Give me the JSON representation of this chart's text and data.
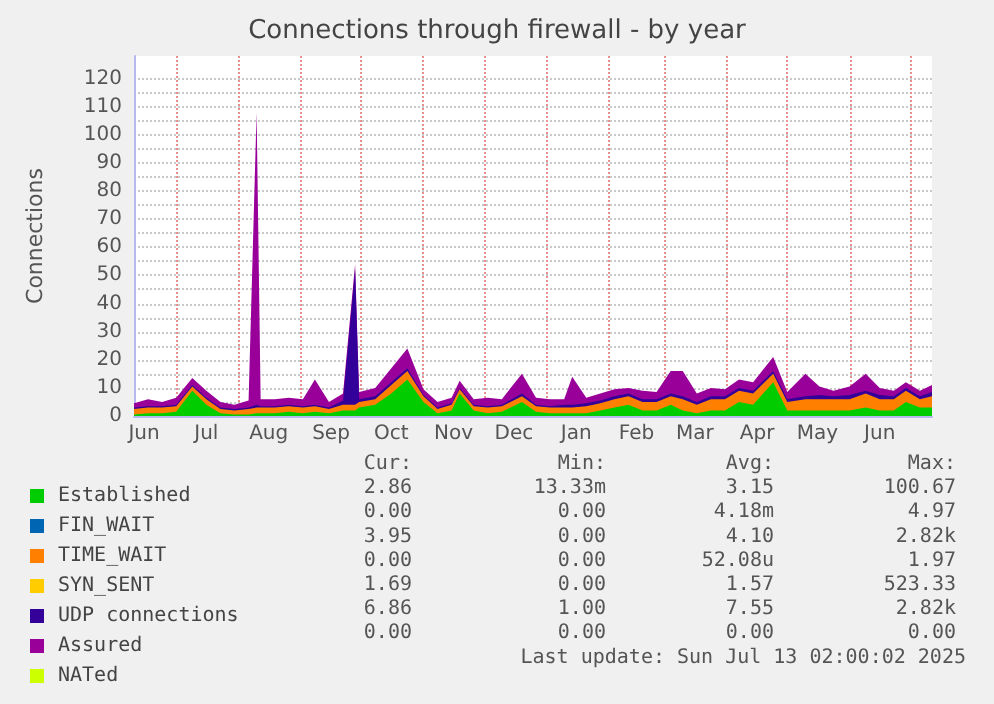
{
  "chart_data": {
    "type": "area",
    "stacked": true,
    "title": "Connections through firewall - by year",
    "ylabel": "Connections",
    "x": [
      "2024-06-10",
      "2024-06-17",
      "2024-06-24",
      "2024-07-01",
      "2024-07-09",
      "2024-07-16",
      "2024-07-23",
      "2024-07-30",
      "2024-08-06",
      "2024-08-10",
      "2024-08-12",
      "2024-08-19",
      "2024-08-26",
      "2024-09-02",
      "2024-09-08",
      "2024-09-15",
      "2024-09-22",
      "2024-09-28",
      "2024-09-30",
      "2024-10-08",
      "2024-10-16",
      "2024-10-24",
      "2024-11-01",
      "2024-11-08",
      "2024-11-15",
      "2024-11-19",
      "2024-11-26",
      "2024-12-03",
      "2024-12-10",
      "2024-12-20",
      "2024-12-27",
      "2025-01-03",
      "2025-01-10",
      "2025-01-14",
      "2025-01-21",
      "2025-01-28",
      "2025-02-04",
      "2025-02-11",
      "2025-02-18",
      "2025-02-25",
      "2025-03-04",
      "2025-03-10",
      "2025-03-17",
      "2025-03-24",
      "2025-03-31",
      "2025-04-07",
      "2025-04-14",
      "2025-04-24",
      "2025-05-01",
      "2025-05-10",
      "2025-05-17",
      "2025-05-24",
      "2025-06-01",
      "2025-06-09",
      "2025-06-16",
      "2025-06-23",
      "2025-06-29",
      "2025-07-06",
      "2025-07-12"
    ],
    "series": [
      {
        "name": "Established",
        "color": "#00cc00",
        "values": [
          0.5,
          1,
          1,
          1.5,
          9,
          4,
          1,
          0.5,
          0.5,
          1,
          1,
          1,
          1.5,
          1,
          1.5,
          1,
          2,
          2,
          3,
          4,
          8,
          13,
          5,
          1,
          2,
          8,
          2,
          1,
          1.5,
          5,
          1.5,
          1,
          1,
          1,
          1,
          2,
          3,
          4,
          2,
          2,
          4,
          2,
          1,
          2,
          2,
          5,
          4,
          12,
          2,
          2,
          2,
          2,
          2,
          3,
          2,
          2,
          5,
          3,
          3
        ]
      },
      {
        "name": "FIN_WAIT",
        "color": "#0066b3",
        "values": [
          null,
          null,
          null,
          null,
          null,
          null,
          null,
          null,
          null,
          null,
          null,
          null,
          null,
          null,
          null,
          null,
          null,
          null,
          null,
          null,
          null,
          null,
          null,
          null,
          null,
          null,
          null,
          null,
          null,
          null,
          null,
          null,
          null,
          null,
          null,
          null,
          null,
          null,
          null,
          null,
          null,
          null,
          null,
          null,
          null,
          null,
          null,
          null,
          null,
          null,
          null,
          null,
          null,
          null,
          null,
          null,
          null,
          null,
          null
        ]
      },
      {
        "name": "TIME_WAIT",
        "color": "#ff8000",
        "values": [
          2,
          2,
          2,
          2,
          1.5,
          2,
          1.5,
          1.5,
          2,
          2,
          2,
          2,
          2,
          2,
          2,
          1.5,
          2,
          2,
          2,
          2,
          3,
          3,
          2,
          1.5,
          2,
          1.5,
          1.5,
          2,
          2,
          2,
          2,
          2,
          2,
          2,
          2.5,
          2.5,
          3,
          3,
          3,
          3,
          3,
          4,
          3,
          4,
          4,
          4,
          4,
          3,
          3,
          4,
          4,
          4,
          4,
          5,
          4,
          4,
          4,
          3,
          4
        ]
      },
      {
        "name": "SYN_SENT",
        "color": "#ffcc00",
        "values": [
          null,
          null,
          null,
          null,
          null,
          null,
          null,
          null,
          null,
          null,
          null,
          null,
          null,
          null,
          null,
          null,
          null,
          null,
          null,
          null,
          null,
          null,
          null,
          null,
          null,
          null,
          null,
          null,
          null,
          null,
          null,
          null,
          null,
          null,
          null,
          null,
          null,
          null,
          null,
          null,
          null,
          null,
          null,
          null,
          null,
          null,
          null,
          null,
          null,
          null,
          null,
          null,
          null,
          null,
          null,
          null,
          null,
          null,
          null
        ]
      },
      {
        "name": "UDP connections",
        "color": "#330099",
        "values": [
          0.5,
          0.5,
          0.5,
          0.5,
          0.5,
          0.5,
          0.5,
          0.5,
          0.5,
          1,
          0.5,
          0.5,
          0.5,
          0.5,
          0.5,
          0.5,
          1.5,
          48,
          1,
          1,
          1,
          1,
          0.5,
          0.5,
          0.5,
          0.5,
          0.5,
          0.5,
          0.5,
          1,
          0.5,
          0.5,
          1,
          1,
          1,
          1,
          1,
          1,
          1,
          1,
          1,
          1,
          1,
          1,
          1,
          1,
          1,
          1,
          1,
          1,
          1.5,
          1,
          1.5,
          1,
          1.5,
          1,
          1,
          1,
          1.5
        ]
      },
      {
        "name": "Assured",
        "color": "#990099",
        "values": [
          1.5,
          2.5,
          1.5,
          2.5,
          2.5,
          2.5,
          2,
          1.5,
          2.5,
          104,
          2.5,
          2.5,
          2.5,
          2.5,
          9,
          2,
          2.5,
          2,
          2.5,
          3,
          5,
          7,
          2,
          2,
          2,
          2.5,
          2,
          3,
          2,
          7,
          2.5,
          2.5,
          2,
          10,
          2,
          2.5,
          2.5,
          2,
          3,
          2.5,
          8,
          9,
          3,
          3,
          2.5,
          3,
          3,
          5,
          2.5,
          8,
          3,
          2,
          3,
          6,
          2.5,
          2,
          2,
          2,
          2.5
        ]
      },
      {
        "name": "NATed",
        "color": "#ccff00",
        "values": [
          null,
          null,
          null,
          null,
          null,
          null,
          null,
          null,
          null,
          null,
          null,
          null,
          null,
          null,
          null,
          null,
          null,
          null,
          null,
          null,
          null,
          null,
          null,
          null,
          null,
          null,
          null,
          null,
          null,
          null,
          null,
          null,
          null,
          null,
          null,
          null,
          null,
          null,
          null,
          null,
          null,
          null,
          null,
          null,
          null,
          null,
          null,
          null,
          null,
          null,
          null,
          null,
          null,
          null,
          null,
          null,
          null,
          null,
          null
        ]
      }
    ],
    "xlim": [
      "2024-06-10",
      "2025-07-12"
    ],
    "xticks": [
      {
        "value": "2024-06-15",
        "label": "Jun"
      },
      {
        "value": "2024-07-01",
        "label": null
      },
      {
        "value": "2024-07-16",
        "label": "Jul"
      },
      {
        "value": "2024-08-01",
        "label": null
      },
      {
        "value": "2024-08-16",
        "label": "Aug"
      },
      {
        "value": "2024-09-01",
        "label": null
      },
      {
        "value": "2024-09-16",
        "label": "Sep"
      },
      {
        "value": "2024-10-01",
        "label": null
      },
      {
        "value": "2024-10-16",
        "label": "Oct"
      },
      {
        "value": "2024-11-01",
        "label": null
      },
      {
        "value": "2024-11-16",
        "label": "Nov"
      },
      {
        "value": "2024-12-01",
        "label": null
      },
      {
        "value": "2024-12-16",
        "label": "Dec"
      },
      {
        "value": "2025-01-01",
        "label": null
      },
      {
        "value": "2025-01-16",
        "label": "Jan"
      },
      {
        "value": "2025-02-01",
        "label": null
      },
      {
        "value": "2025-02-15",
        "label": "Feb"
      },
      {
        "value": "2025-03-01",
        "label": null
      },
      {
        "value": "2025-03-16",
        "label": "Mar"
      },
      {
        "value": "2025-04-01",
        "label": null
      },
      {
        "value": "2025-04-16",
        "label": "Apr"
      },
      {
        "value": "2025-05-01",
        "label": null
      },
      {
        "value": "2025-05-16",
        "label": "May"
      },
      {
        "value": "2025-06-01",
        "label": null
      },
      {
        "value": "2025-06-16",
        "label": "Jun"
      },
      {
        "value": "2025-07-01",
        "label": null
      }
    ],
    "ylim": [
      0,
      128
    ],
    "yticks": [
      0,
      {
        "value": 5,
        "label": null
      },
      10,
      {
        "value": 15,
        "label": null
      },
      20,
      {
        "value": 25,
        "label": null
      },
      30,
      {
        "value": 35,
        "label": null
      },
      40,
      {
        "value": 45,
        "label": null
      },
      50,
      {
        "value": 55,
        "label": null
      },
      60,
      {
        "value": 65,
        "label": null
      },
      70,
      {
        "value": 75,
        "label": null
      },
      80,
      {
        "value": 85,
        "label": null
      },
      90,
      {
        "value": 95,
        "label": null
      },
      100,
      {
        "value": 105,
        "label": null
      },
      110,
      {
        "value": 115,
        "label": null
      },
      120
    ],
    "grid": true,
    "legend": "bottom",
    "marker": "none",
    "annotations": [
      "Cur:",
      "Min:",
      "Avg:",
      "Max:",
      "2.86",
      "13.33m",
      "3.15",
      "100.67",
      "0.00",
      "0.00",
      "4.18m",
      "4.97",
      "3.95",
      "0.00",
      "4.10",
      "2.82k",
      "0.00",
      "0.00",
      "52.08u",
      "1.97",
      "1.69",
      "0.00",
      "1.57",
      "523.33",
      "6.86",
      "1.00",
      "7.55",
      "2.82k",
      "0.00",
      "0.00",
      "0.00",
      "0.00",
      "Last update: Sun Jul 13 02:00:02 2025"
    ]
  }
}
